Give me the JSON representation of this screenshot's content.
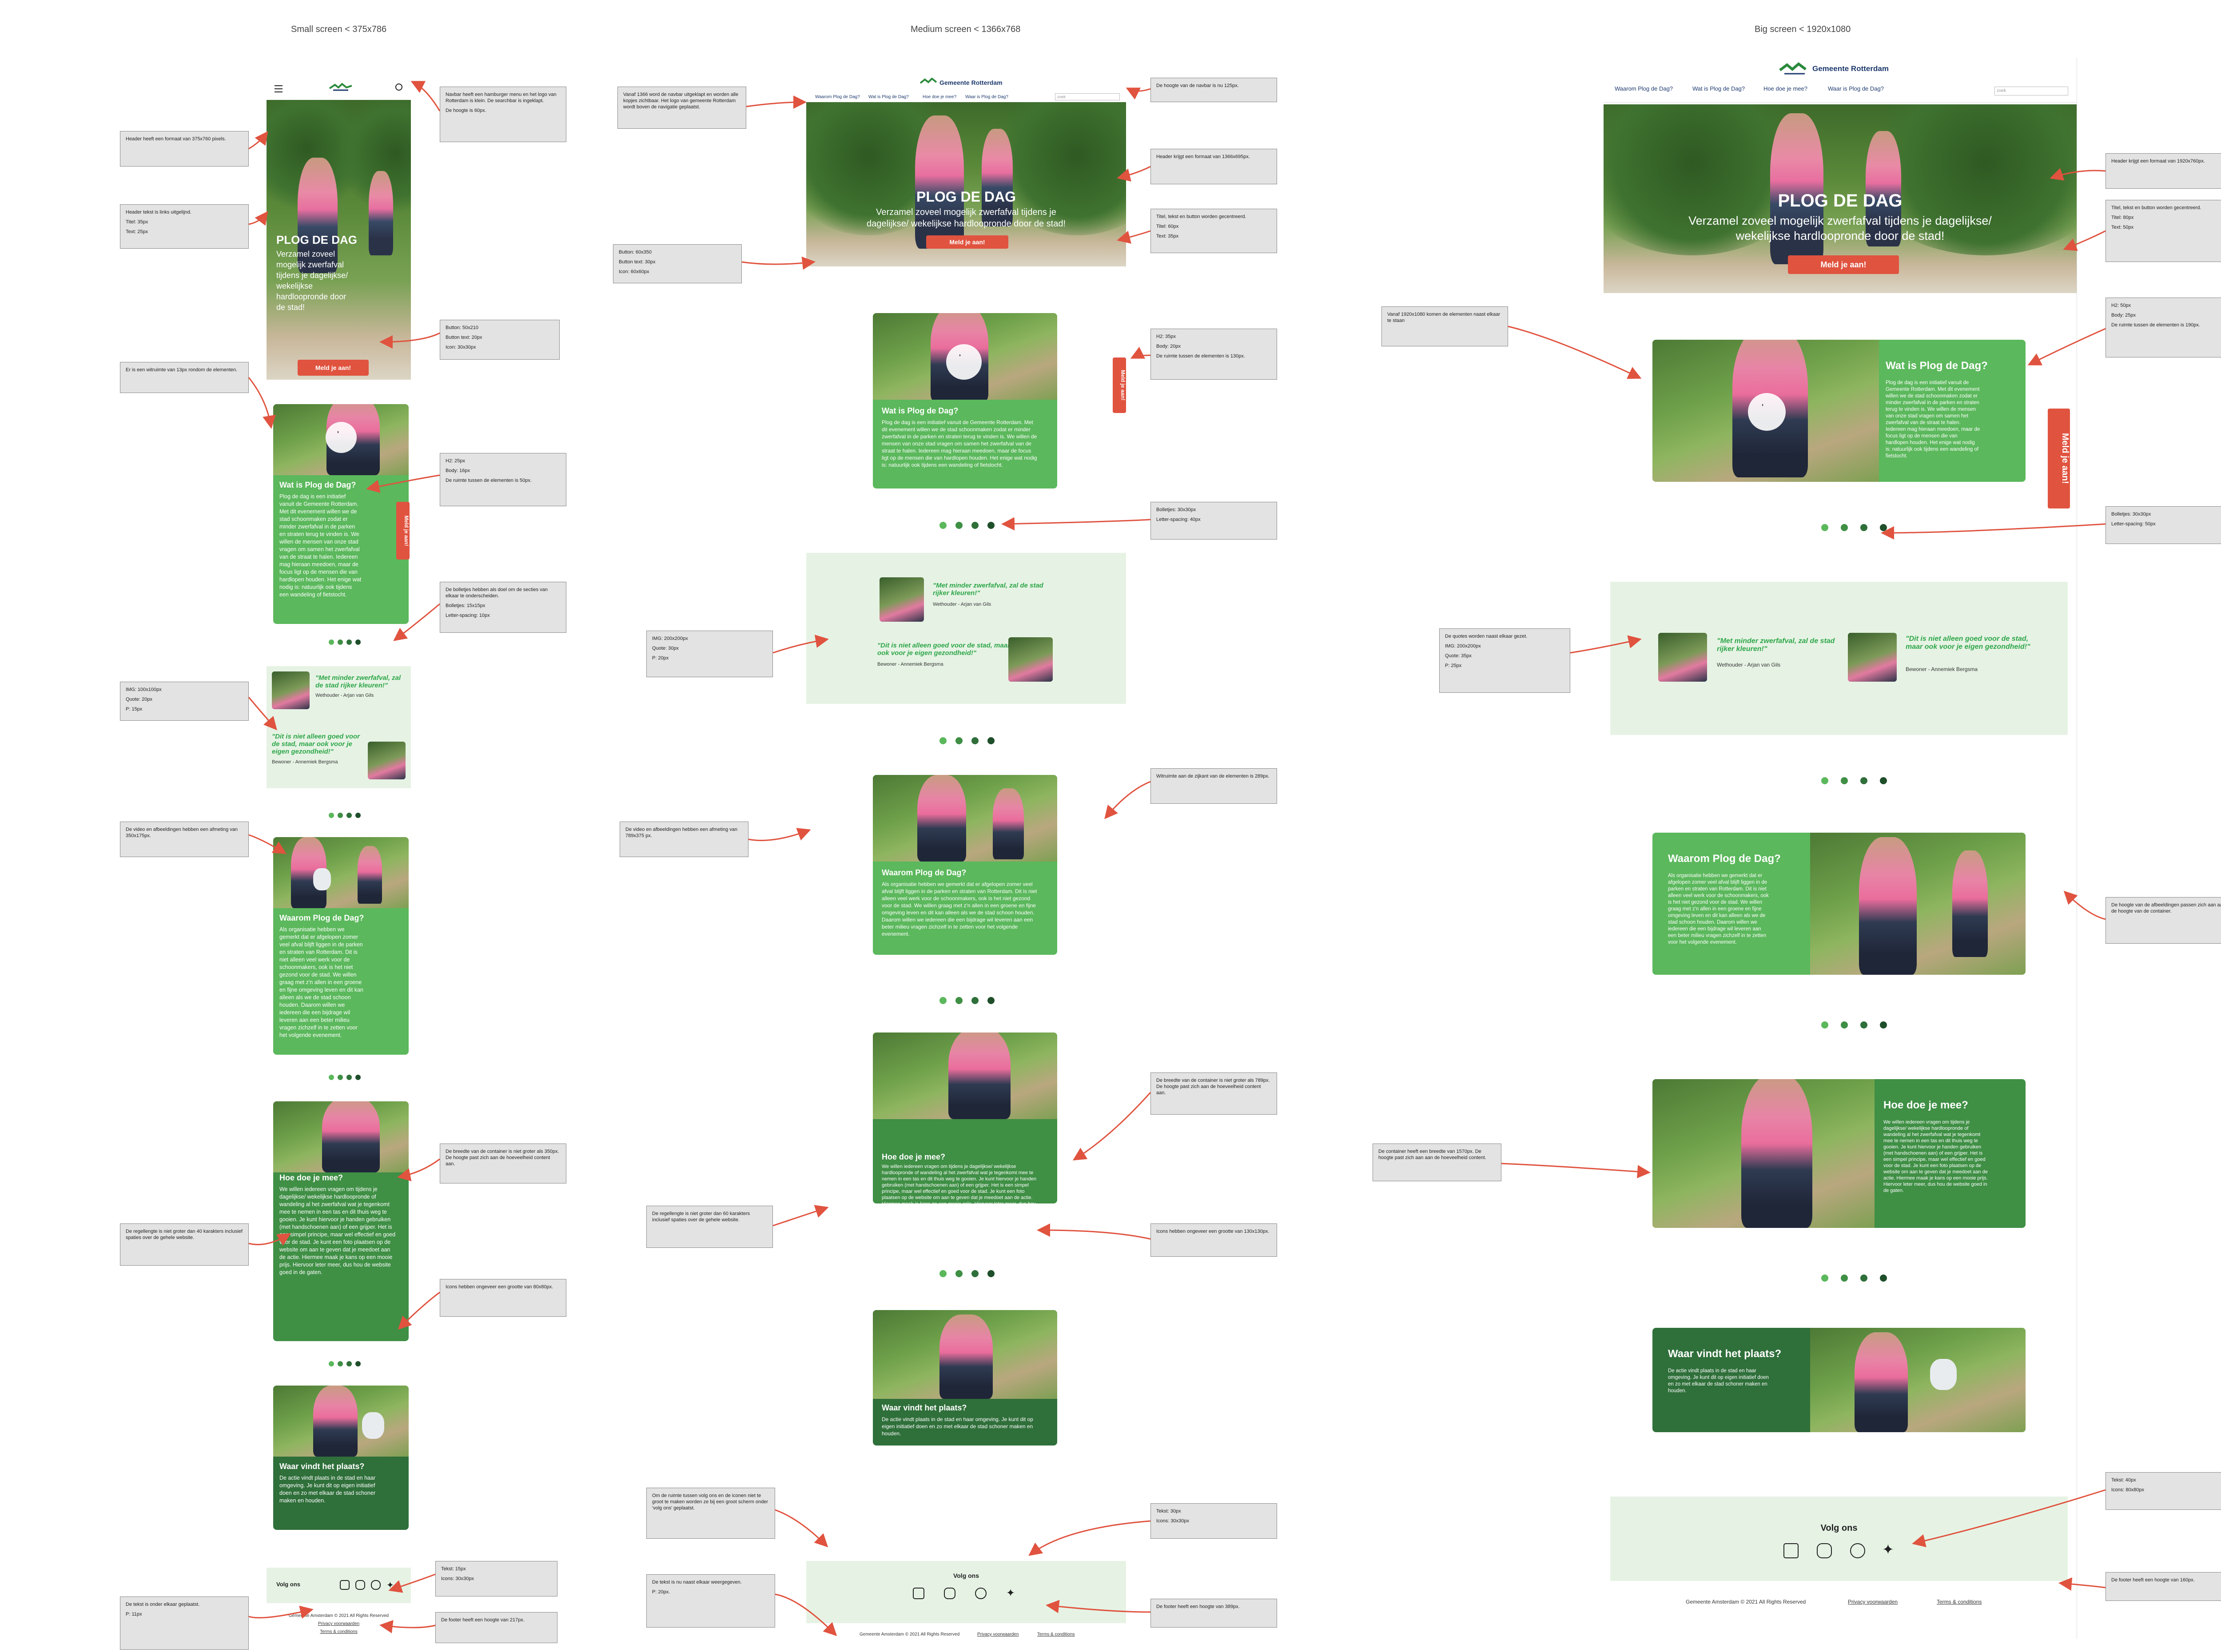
{
  "columns": {
    "small": "Small screen < 375x786",
    "medium": "Medium screen < 1366x768",
    "big": "Big screen < 1920x1080"
  },
  "site": {
    "logo": "Gemeente Rotterdam",
    "nav": [
      "Waarom Plog de Dag?",
      "Wat is Plog de Dag?",
      "Hoe doe je mee?",
      "Waar is Plog de Dag?"
    ],
    "search_placeholder": "zoek",
    "hero_title": "PLOG DE DAG",
    "hero_sub": "Verzamel zoveel mogelijk zwerfafval tijdens je dagelijkse/ wekelijkse hardloopronde door de stad!",
    "hero_sub_medium": "Verzamel zoveel mogelijk zwerfafval tijdens je dagelijkse/ wekelijkse hardloopronde door de stad!",
    "cta": "Meld je aan!",
    "side_tab": "Meld je aan!",
    "sections": [
      {
        "title": "Wat is Plog de Dag?",
        "body": "Plog de dag is een initiatief vanuit de Gemeente Rotterdam. Met dit evenement willen we de stad schoonmaken zodat er minder zwerfafval in de parken en straten terug te vinden is. We willen de mensen van onze stad vragen om samen het zwerfafval van de straat te halen. Iedereen mag hieraan meedoen, maar de focus ligt op de mensen die van hardlopen houden. Het enige wat nodig is: natuurlijk ook tijdens een wandeling of fietstocht."
      },
      {
        "title": "Waarom Plog de Dag?",
        "body": "Als organisatie hebben we gemerkt dat er afgelopen zomer veel afval blijft liggen in de parken en straten van Rotterdam. Dit is niet alleen veel werk voor de schoonmakers, ook is het niet gezond voor de stad. We willen graag met z'n allen in een groene en fijne omgeving leven en dit kan alleen als we de stad schoon houden. Daarom willen we iedereen die een bijdrage wil leveren aan een beter milieu vragen zichzelf in te zetten voor het volgende evenement."
      },
      {
        "title": "Hoe doe je mee?",
        "body": "We willen iedereen vragen om tijdens je dagelijkse/ wekelijkse hardloopronde of wandeling al het zwerfafval wat je tegenkomt mee te nemen in een tas en dit thuis weg te gooien. Je kunt hiervoor je handen gebruiken (met handschoenen aan) of een grijper. Het is een simpel principe, maar wel effectief en goed voor de stad. Je kunt een foto plaatsen op de website om aan te geven dat je meedoet aan de actie. Hiermee maak je kans op een mooie prijs. Hiervoor leter meer, dus hou de website goed in de gaten."
      },
      {
        "title": "Waar vindt het plaats?",
        "body": "De actie vindt plaats in de stad en haar omgeving. Je kunt dit op eigen initiatief doen en zo met elkaar de stad schoner maken en houden."
      }
    ],
    "quotes": [
      {
        "text": "\"Met minder zwerfafval, zal de stad rijker kleuren!\"",
        "author": "Wethouder - Arjan van Gils"
      },
      {
        "text": "\"Dit is niet alleen goed voor de stad, maar ook voor je eigen gezondheid!\"",
        "author": "Bewoner - Annemiek Bergsma"
      }
    ],
    "follow": "Volg ons",
    "copyright": "Gemeente Amsterdam © 2021 All Rights Reserved",
    "privacy": "Privacy voorwaarden",
    "terms": "Terms & conditions"
  },
  "notes_small": [
    {
      "lines": [
        "Navbar heeft een hamburger menu en het logo van Rotterdam is klein. De searchbar is ingeklapt.",
        "De hoogte is 60px."
      ]
    },
    {
      "lines": [
        "Header heeft een formaat van 375x760 pixels."
      ]
    },
    {
      "lines": [
        "Header tekst is links uitgelijnd.",
        "Titel: 35px",
        "Text: 25px"
      ]
    },
    {
      "lines": [
        "Button: 50x210",
        "Button text: 20px",
        "Icon: 30x30px"
      ]
    },
    {
      "lines": [
        "Er is een witruimte van 13px rondom de elementen."
      ]
    },
    {
      "lines": [
        "H2: 25px",
        "Body: 16px",
        "De ruimte tussen de elementen is 50px."
      ]
    },
    {
      "lines": [
        "De bolletjes hebben als doel om de secties van elkaar te onderscheiden.",
        "Bolletjes: 15x15px",
        "Letter-spacing: 10px"
      ]
    },
    {
      "lines": [
        "IMG: 100x100px",
        "Quote: 20px",
        "P: 15px"
      ]
    },
    {
      "lines": [
        "De video en afbeeldingen hebben een afmeting van 350x175px."
      ]
    },
    {
      "lines": [
        "De breedte van de container is niet groter als 350px. De hoogte past zich aan de hoeveelheid content aan."
      ]
    },
    {
      "lines": [
        "De regellengte is niet groter dan 40 karakters inclusief spaties over de gehele website."
      ]
    },
    {
      "lines": [
        "Icons hebben ongeveer een grootte van 80x80px."
      ]
    },
    {
      "lines": [
        "Tekst: 15px",
        "Icons: 30x30px"
      ]
    },
    {
      "lines": [
        "De tekst is onder elkaar geplaatst.",
        "P: 11px"
      ]
    },
    {
      "lines": [
        "De footer heeft een hoogte van 217px."
      ]
    }
  ],
  "notes_medium": [
    {
      "lines": [
        "Vanaf 1366 word de navbar uitgeklapt en worden alle kopjes zichtbaar. Het logo van gemeente Rotterdam wordt boven de navigatie geplaatst."
      ]
    },
    {
      "lines": [
        "De hoogte van de navbar is nu 125px."
      ]
    },
    {
      "lines": [
        "Header krijgt een formaat van 1366x695px."
      ]
    },
    {
      "lines": [
        "Titel, tekst en button worden gecentreerd.",
        "Titel: 60px",
        "Text: 35px"
      ]
    },
    {
      "lines": [
        "Button: 60x350",
        "Button text: 30px",
        "Icon: 60x60px"
      ]
    },
    {
      "lines": [
        "H2: 35px",
        "Body: 20px",
        "De ruimte tussen de elementen is 130px."
      ]
    },
    {
      "lines": [
        "Bolletjes: 30x30px",
        "Letter-spacing: 40px"
      ]
    },
    {
      "lines": [
        "IMG: 200x200px",
        "Quote: 30px",
        "P: 20px"
      ]
    },
    {
      "lines": [
        "Witruimte aan de zijkant van de elementen is 289px."
      ]
    },
    {
      "lines": [
        "De video en afbeeldingen hebben een afmeting van 789x375 px."
      ]
    },
    {
      "lines": [
        "De breedte van de container is niet groter als 789px. De hoogte past zich aan de hoeveelheid content aan."
      ]
    },
    {
      "lines": [
        "De regellengte is niet groter dan 60 karakters inclusief spaties over de gehele website."
      ]
    },
    {
      "lines": [
        "Icons hebben ongeveer een grootte van 130x130px."
      ]
    },
    {
      "lines": [
        "Om de ruimte tussen volg ons en de iconen niet te groot te maken worden ze bij een groot scherm onder 'volg ons' geplaatst."
      ]
    },
    {
      "lines": [
        "Tekst: 30px",
        "Icons: 30x30px"
      ]
    },
    {
      "lines": [
        "De tekst is nu naast elkaar weergegeven.",
        "P: 20px."
      ]
    },
    {
      "lines": [
        "De footer heeft een hoogte van 389px."
      ]
    }
  ],
  "notes_big": [
    {
      "lines": [
        "Header krijgt een formaat van 1920x760px."
      ]
    },
    {
      "lines": [
        "Titel, tekst en button worden gecentreerd.",
        "Titel: 80px",
        "Text: 50px"
      ]
    },
    {
      "lines": [
        "H2: 50px",
        "Body: 25px",
        "De ruimte tussen de elementen is 190px."
      ]
    },
    {
      "lines": [
        "Vanaf 1920x1080 komen de elementen naast elkaar te staan"
      ]
    },
    {
      "lines": [
        "Bolletjes: 30x30px",
        "Letter-spacing: 50px"
      ]
    },
    {
      "lines": [
        "De quotes worden naast elkaar gezet.",
        "IMG: 200x200px",
        "Quote: 35px",
        "P: 25px"
      ]
    },
    {
      "lines": [
        "De hoogte van de afbeeldingen passen zich aan aan de hoogte van de container."
      ]
    },
    {
      "lines": [
        "De container heeft een breedte van 1570px. De hoogte past zich aan aan de hoeveelheid content."
      ]
    },
    {
      "lines": [
        "Tekst: 40px",
        "Icons: 80x80px"
      ]
    },
    {
      "lines": [
        "De footer heeft een hoogte van 160px."
      ]
    }
  ]
}
